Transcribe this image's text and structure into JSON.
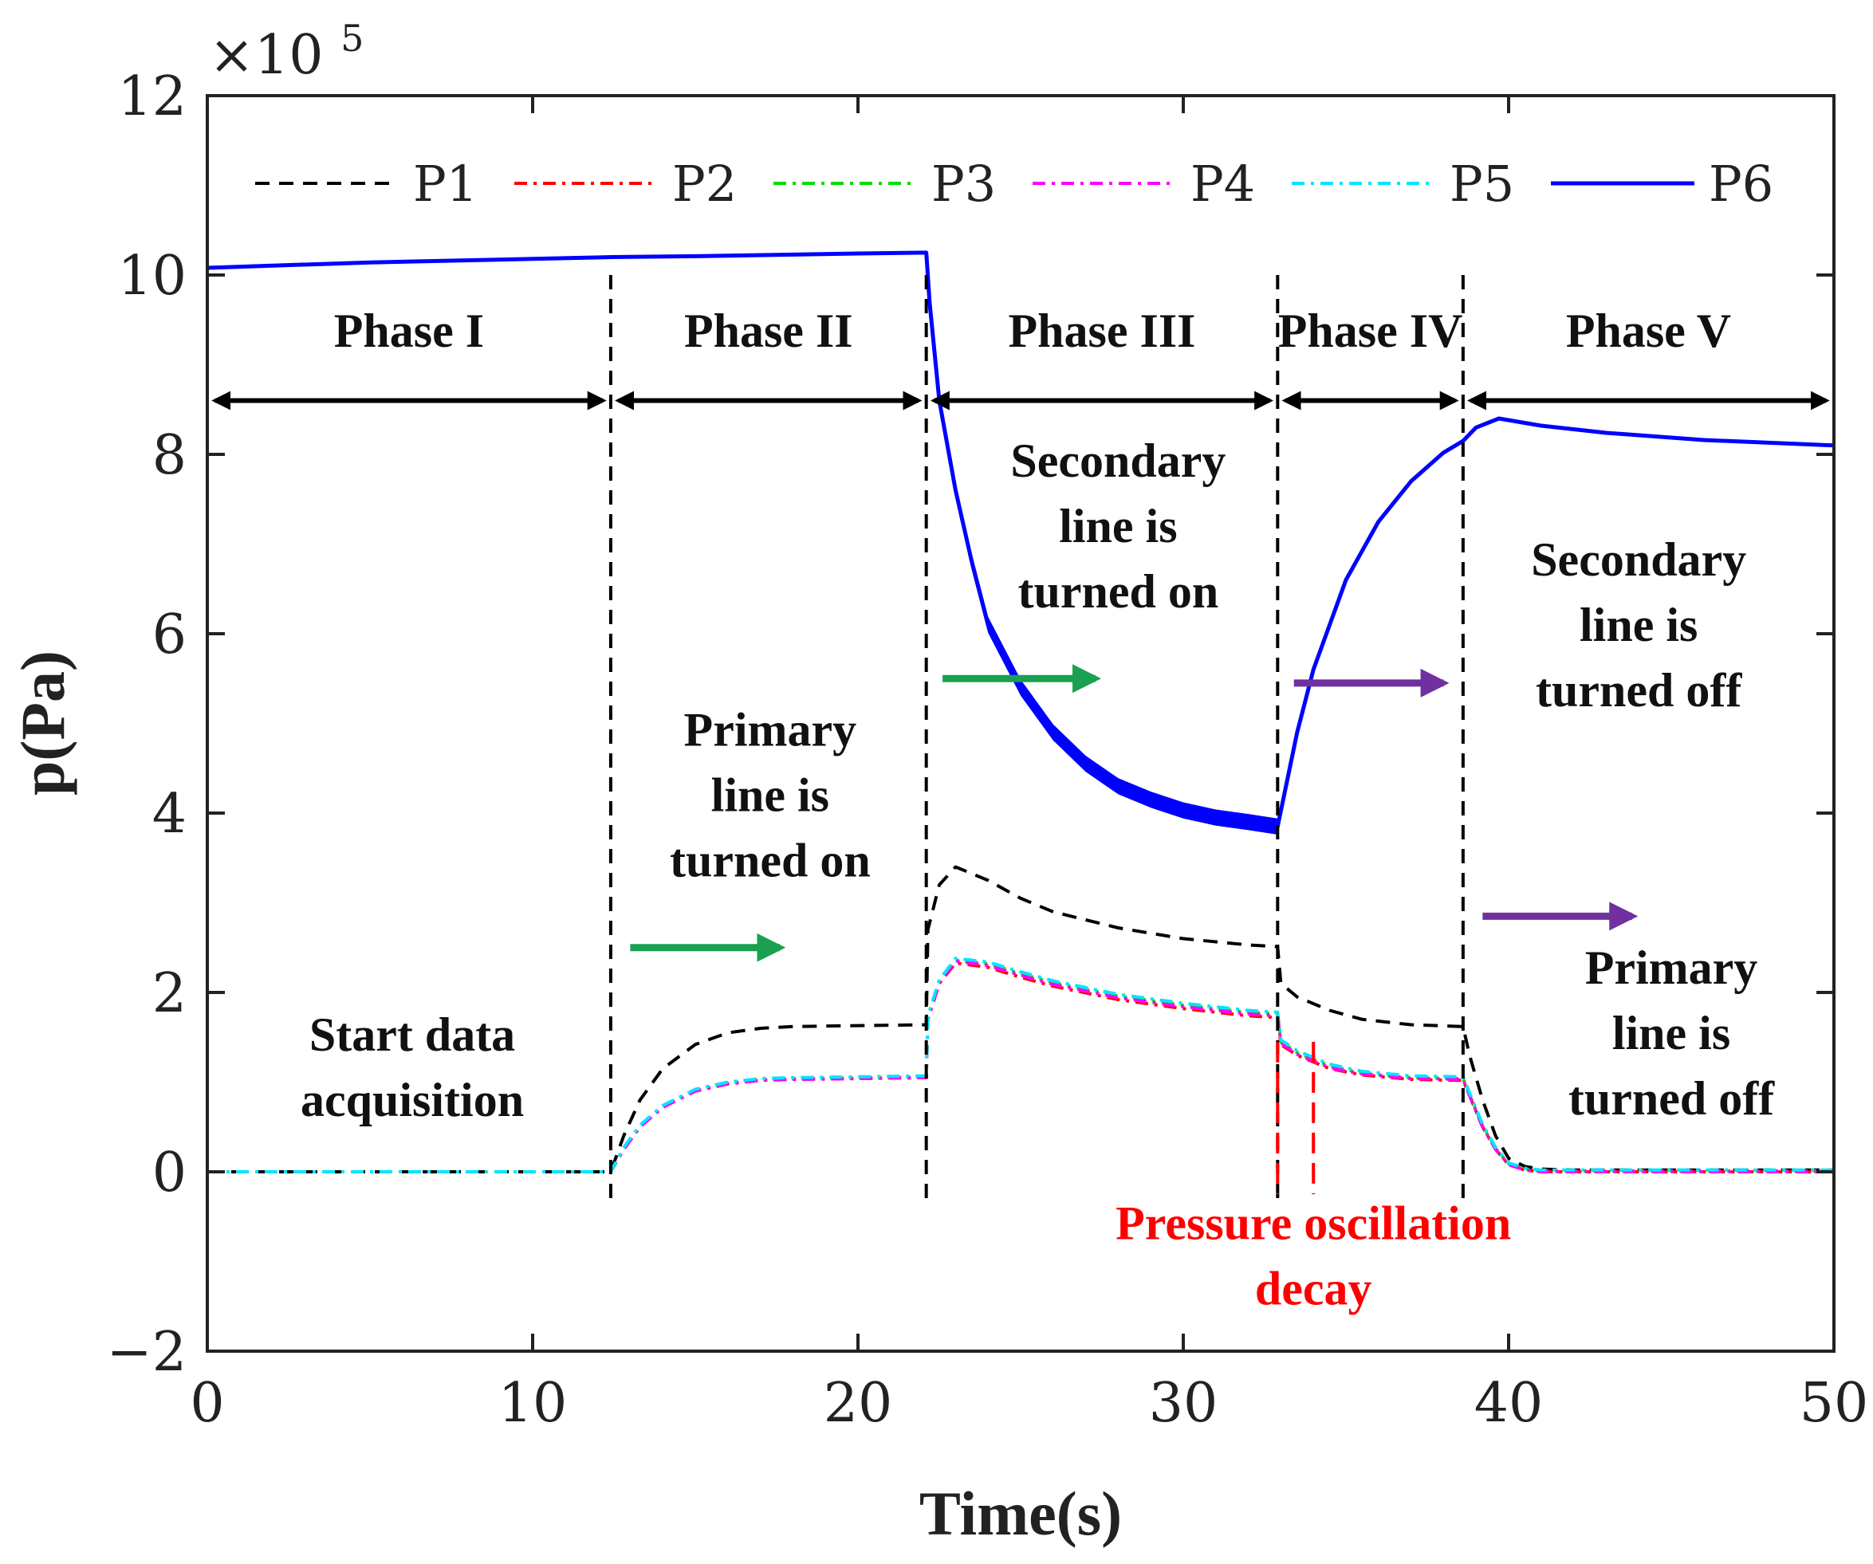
{
  "chart_data": {
    "type": "line",
    "xlabel": "Time(s)",
    "ylabel": "p(Pa)",
    "exponent_label": "×10^5",
    "xlim": [
      0,
      50
    ],
    "ylim": [
      -2,
      12
    ],
    "y_scale": 100000,
    "x_ticks": [
      0,
      10,
      20,
      30,
      40,
      50
    ],
    "y_ticks": [
      -2,
      0,
      2,
      4,
      6,
      8,
      10,
      12
    ],
    "x_tick_labels": [
      "0",
      "10",
      "20",
      "30",
      "40",
      "50"
    ],
    "y_tick_labels": [
      "−2",
      "0",
      "2",
      "4",
      "6",
      "8",
      "10",
      "12"
    ],
    "grid": false,
    "legend_position": "top",
    "series": [
      {
        "name": "P1",
        "color": "#000000",
        "style": "dashed",
        "points": [
          [
            0,
            0
          ],
          [
            12.4,
            0
          ],
          [
            12.8,
            0.4
          ],
          [
            13.3,
            0.8
          ],
          [
            14,
            1.15
          ],
          [
            15,
            1.42
          ],
          [
            16,
            1.55
          ],
          [
            17,
            1.6
          ],
          [
            18,
            1.62
          ],
          [
            20,
            1.63
          ],
          [
            22.1,
            1.64
          ],
          [
            22.15,
            2.7
          ],
          [
            22.5,
            3.2
          ],
          [
            23,
            3.4
          ],
          [
            24,
            3.25
          ],
          [
            25,
            3.05
          ],
          [
            26,
            2.9
          ],
          [
            28,
            2.72
          ],
          [
            30,
            2.6
          ],
          [
            32,
            2.53
          ],
          [
            32.9,
            2.51
          ],
          [
            33,
            2.1
          ],
          [
            33.5,
            1.95
          ],
          [
            34.5,
            1.8
          ],
          [
            35.5,
            1.7
          ],
          [
            37,
            1.64
          ],
          [
            38.6,
            1.62
          ],
          [
            38.8,
            1.3
          ],
          [
            39.2,
            0.8
          ],
          [
            39.6,
            0.4
          ],
          [
            40,
            0.15
          ],
          [
            40.5,
            0.06
          ],
          [
            41,
            0.03
          ],
          [
            42,
            0.02
          ],
          [
            50,
            0.02
          ]
        ]
      },
      {
        "name": "P2",
        "color": "#ff0000",
        "style": "dashdot",
        "points": [
          [
            0,
            0
          ],
          [
            12.4,
            0
          ],
          [
            12.8,
            0.25
          ],
          [
            13.3,
            0.5
          ],
          [
            14,
            0.72
          ],
          [
            15,
            0.9
          ],
          [
            16,
            0.98
          ],
          [
            17,
            1.02
          ],
          [
            18,
            1.03
          ],
          [
            20,
            1.04
          ],
          [
            22.1,
            1.05
          ],
          [
            22.15,
            1.7
          ],
          [
            22.5,
            2.1
          ],
          [
            23,
            2.33
          ],
          [
            24,
            2.28
          ],
          [
            25,
            2.17
          ],
          [
            26,
            2.07
          ],
          [
            28,
            1.92
          ],
          [
            30,
            1.82
          ],
          [
            32,
            1.74
          ],
          [
            32.9,
            1.72
          ],
          [
            33,
            1.42
          ],
          [
            33.5,
            1.3
          ],
          [
            34.5,
            1.15
          ],
          [
            35.5,
            1.08
          ],
          [
            37,
            1.03
          ],
          [
            38.6,
            1.02
          ],
          [
            38.8,
            0.85
          ],
          [
            39.2,
            0.5
          ],
          [
            39.6,
            0.25
          ],
          [
            40,
            0.08
          ],
          [
            40.5,
            0.02
          ],
          [
            41,
            0
          ],
          [
            50,
            0
          ]
        ]
      },
      {
        "name": "P3",
        "color": "#00dd00",
        "style": "dashdot",
        "points": [
          [
            0,
            0
          ],
          [
            12.4,
            0
          ],
          [
            12.8,
            0.26
          ],
          [
            13.3,
            0.51
          ],
          [
            14,
            0.73
          ],
          [
            15,
            0.91
          ],
          [
            16,
            0.99
          ],
          [
            17,
            1.03
          ],
          [
            18,
            1.04
          ],
          [
            20,
            1.05
          ],
          [
            22.1,
            1.06
          ],
          [
            22.15,
            1.72
          ],
          [
            22.5,
            2.12
          ],
          [
            23,
            2.36
          ],
          [
            24,
            2.32
          ],
          [
            25,
            2.21
          ],
          [
            26,
            2.11
          ],
          [
            28,
            1.96
          ],
          [
            30,
            1.86
          ],
          [
            32,
            1.78
          ],
          [
            32.9,
            1.76
          ],
          [
            33,
            1.45
          ],
          [
            33.5,
            1.33
          ],
          [
            34.5,
            1.18
          ],
          [
            35.5,
            1.1
          ],
          [
            37,
            1.05
          ],
          [
            38.6,
            1.04
          ],
          [
            38.8,
            0.86
          ],
          [
            39.2,
            0.51
          ],
          [
            39.6,
            0.26
          ],
          [
            40,
            0.09
          ],
          [
            40.5,
            0.03
          ],
          [
            41,
            0.01
          ],
          [
            50,
            0.01
          ]
        ]
      },
      {
        "name": "P4",
        "color": "#ff00ff",
        "style": "dashdot",
        "points": [
          [
            0,
            0
          ],
          [
            12.4,
            0
          ],
          [
            12.8,
            0.25
          ],
          [
            13.3,
            0.5
          ],
          [
            14,
            0.72
          ],
          [
            15,
            0.9
          ],
          [
            16,
            0.98
          ],
          [
            17,
            1.02
          ],
          [
            18,
            1.03
          ],
          [
            20,
            1.04
          ],
          [
            22.1,
            1.05
          ],
          [
            22.15,
            1.71
          ],
          [
            22.5,
            2.11
          ],
          [
            23,
            2.35
          ],
          [
            24,
            2.3
          ],
          [
            25,
            2.19
          ],
          [
            26,
            2.09
          ],
          [
            28,
            1.94
          ],
          [
            30,
            1.84
          ],
          [
            32,
            1.76
          ],
          [
            32.9,
            1.74
          ],
          [
            33,
            1.44
          ],
          [
            33.5,
            1.31
          ],
          [
            34.5,
            1.16
          ],
          [
            35.5,
            1.09
          ],
          [
            37,
            1.04
          ],
          [
            38.6,
            1.03
          ],
          [
            38.8,
            0.85
          ],
          [
            39.2,
            0.5
          ],
          [
            39.6,
            0.25
          ],
          [
            40,
            0.08
          ],
          [
            40.5,
            0.02
          ],
          [
            41,
            0
          ],
          [
            50,
            0
          ]
        ]
      },
      {
        "name": "P5",
        "color": "#00e5ff",
        "style": "dashdot",
        "points": [
          [
            0,
            0
          ],
          [
            12.4,
            0
          ],
          [
            12.8,
            0.27
          ],
          [
            13.3,
            0.52
          ],
          [
            14,
            0.74
          ],
          [
            15,
            0.92
          ],
          [
            16,
            1.0
          ],
          [
            17,
            1.04
          ],
          [
            18,
            1.05
          ],
          [
            20,
            1.06
          ],
          [
            22.1,
            1.07
          ],
          [
            22.15,
            1.74
          ],
          [
            22.5,
            2.14
          ],
          [
            23,
            2.38
          ],
          [
            24,
            2.34
          ],
          [
            25,
            2.23
          ],
          [
            26,
            2.13
          ],
          [
            28,
            1.98
          ],
          [
            30,
            1.88
          ],
          [
            32,
            1.8
          ],
          [
            32.9,
            1.78
          ],
          [
            33,
            1.47
          ],
          [
            33.5,
            1.35
          ],
          [
            34.5,
            1.2
          ],
          [
            35.5,
            1.12
          ],
          [
            37,
            1.07
          ],
          [
            38.6,
            1.06
          ],
          [
            38.8,
            0.88
          ],
          [
            39.2,
            0.53
          ],
          [
            39.6,
            0.27
          ],
          [
            40,
            0.1
          ],
          [
            40.5,
            0.04
          ],
          [
            41,
            0.02
          ],
          [
            50,
            0.02
          ]
        ]
      },
      {
        "name": "P6",
        "color": "#0000ff",
        "style": "solid",
        "points": [
          [
            0,
            10.08
          ],
          [
            5,
            10.14
          ],
          [
            10,
            10.18
          ],
          [
            12.4,
            10.2
          ],
          [
            15,
            10.21
          ],
          [
            20,
            10.24
          ],
          [
            22.1,
            10.25
          ],
          [
            22.2,
            9.7
          ],
          [
            22.5,
            8.6
          ],
          [
            23,
            7.6
          ],
          [
            23.5,
            6.8
          ],
          [
            24,
            6.1
          ],
          [
            25,
            5.4
          ],
          [
            26,
            4.9
          ],
          [
            27,
            4.55
          ],
          [
            28,
            4.3
          ],
          [
            29,
            4.15
          ],
          [
            30,
            4.03
          ],
          [
            31,
            3.95
          ],
          [
            32,
            3.9
          ],
          [
            32.9,
            3.85
          ],
          [
            33.5,
            4.9
          ],
          [
            34,
            5.6
          ],
          [
            35,
            6.6
          ],
          [
            36,
            7.25
          ],
          [
            37,
            7.7
          ],
          [
            38,
            8.02
          ],
          [
            38.6,
            8.15
          ],
          [
            39,
            8.3
          ],
          [
            39.7,
            8.4
          ],
          [
            41,
            8.32
          ],
          [
            43,
            8.24
          ],
          [
            46,
            8.16
          ],
          [
            50,
            8.1
          ]
        ]
      }
    ],
    "phase_boundaries": [
      12.4,
      22.1,
      32.9,
      38.6
    ],
    "phases": [
      {
        "label": "Phase I",
        "x_start": 0,
        "x_end": 12.4
      },
      {
        "label": "Phase II",
        "x_start": 12.4,
        "x_end": 22.1
      },
      {
        "label": "Phase III",
        "x_start": 22.1,
        "x_end": 32.9
      },
      {
        "label": "Phase IV",
        "x_start": 32.9,
        "x_end": 38.6
      },
      {
        "label": "Phase V",
        "x_start": 38.6,
        "x_end": 50
      }
    ],
    "phase_arrow_y": 8.6,
    "phase_label_y": 9.2,
    "oscillation_markers": {
      "x": [
        32.9,
        34.0
      ],
      "y_range": [
        -0.25,
        1.45
      ],
      "color": "#ff0000"
    },
    "annotations": [
      {
        "lines": [
          "Start data",
          "acquisition"
        ],
        "x": 6.3,
        "y": 1.35,
        "color": "#111111"
      },
      {
        "lines": [
          "Primary",
          "line is",
          "turned on"
        ],
        "x": 17.3,
        "y": 4.75,
        "color": "#111111"
      },
      {
        "lines": [
          "Secondary",
          "line is",
          "turned on"
        ],
        "x": 28.0,
        "y": 7.75,
        "color": "#111111"
      },
      {
        "lines": [
          "Secondary",
          "line is",
          "turned off"
        ],
        "x": 44.0,
        "y": 6.65,
        "color": "#111111"
      },
      {
        "lines": [
          "Primary",
          "line is",
          "turned off"
        ],
        "x": 45.0,
        "y": 2.1,
        "color": "#111111"
      },
      {
        "lines": [
          "Pressure oscillation",
          "decay"
        ],
        "x": 34.0,
        "y": -0.75,
        "color": "#ff0000"
      }
    ],
    "arrows": [
      {
        "x1": 13.0,
        "x2": 17.6,
        "y": 2.5,
        "color": "#1aa050"
      },
      {
        "x1": 22.6,
        "x2": 27.3,
        "y": 5.5,
        "color": "#1aa050"
      },
      {
        "x1": 33.4,
        "x2": 38.0,
        "y": 5.45,
        "color": "#7030a0"
      },
      {
        "x1": 39.2,
        "x2": 43.8,
        "y": 2.85,
        "color": "#7030a0"
      }
    ]
  }
}
